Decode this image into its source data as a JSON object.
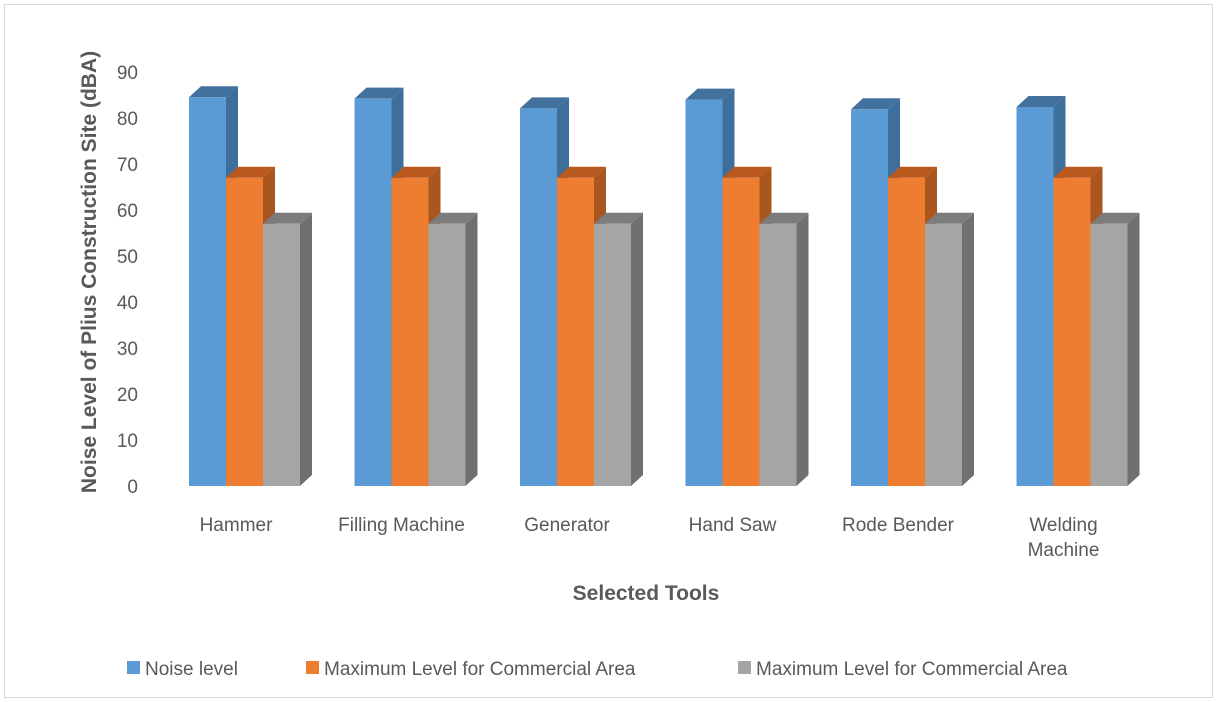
{
  "chart_data": {
    "type": "bar",
    "title": "",
    "xlabel": "Selected Tools",
    "ylabel": "Noise Level of Plius Construction Site (dBA)",
    "categories": [
      [
        "Hammer"
      ],
      [
        "Filling Machine"
      ],
      [
        "Generator"
      ],
      [
        "Hand Saw"
      ],
      [
        "Rode Bender"
      ],
      [
        "Welding",
        "Machine"
      ]
    ],
    "series": [
      {
        "name": "Noise level",
        "color": "#5b9bd5",
        "side": "#3e6f9c",
        "top": "#41719c",
        "values": [
          84.5,
          84.2,
          82.1,
          84.0,
          81.9,
          82.4
        ]
      },
      {
        "name": "Maximum Level for Commercial Area",
        "color": "#ed7d31",
        "side": "#a9561f",
        "top": "#b9591e",
        "values": [
          67,
          67,
          67,
          67,
          67,
          67
        ]
      },
      {
        "name": "Maximum Level for Commercial Area",
        "color": "#a5a5a5",
        "side": "#707070",
        "top": "#7c7c7c",
        "values": [
          57,
          57,
          57,
          57,
          57,
          57
        ]
      }
    ],
    "ylim": [
      0,
      90
    ],
    "yticks": [
      0,
      10,
      20,
      30,
      40,
      50,
      60,
      70,
      80,
      90
    ],
    "grid": false,
    "legend": "bottom",
    "style": "3d-clustered-column"
  }
}
